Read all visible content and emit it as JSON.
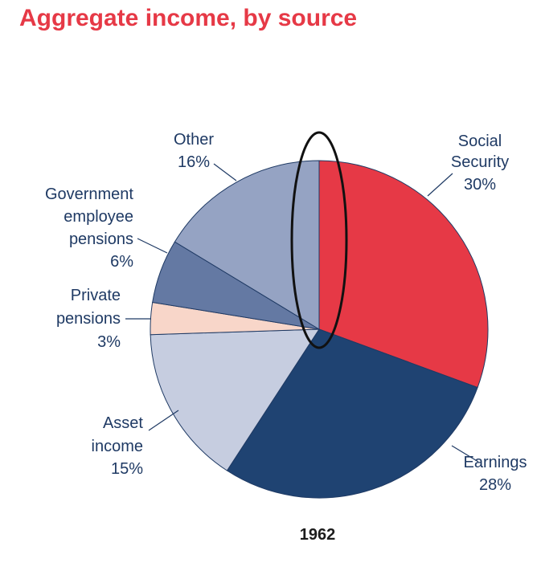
{
  "chart_data": {
    "type": "pie",
    "title": "Aggregate income, by source",
    "caption": "1962",
    "slices": [
      {
        "name": "Social Security",
        "label_lines": [
          "Social",
          "Security",
          "30%"
        ],
        "value": 30,
        "color": "#e63946"
      },
      {
        "name": "Earnings",
        "label_lines": [
          "Earnings",
          "28%"
        ],
        "value": 28,
        "color": "#1f4372"
      },
      {
        "name": "Asset income",
        "label_lines": [
          "Asset",
          "income",
          "15%"
        ],
        "value": 15,
        "color": "#c6cde0"
      },
      {
        "name": "Private pensions",
        "label_lines": [
          "Private",
          "pensions",
          "3%"
        ],
        "value": 3,
        "color": "#f8d6c9"
      },
      {
        "name": "Government employee pensions",
        "label_lines": [
          "Government",
          "employee",
          "pensions",
          "6%"
        ],
        "value": 6,
        "color": "#6479a3"
      },
      {
        "name": "Other",
        "label_lines": [
          "Other",
          "16%"
        ],
        "value": 16,
        "color": "#95a3c3"
      }
    ],
    "annotation": "ellipse"
  }
}
